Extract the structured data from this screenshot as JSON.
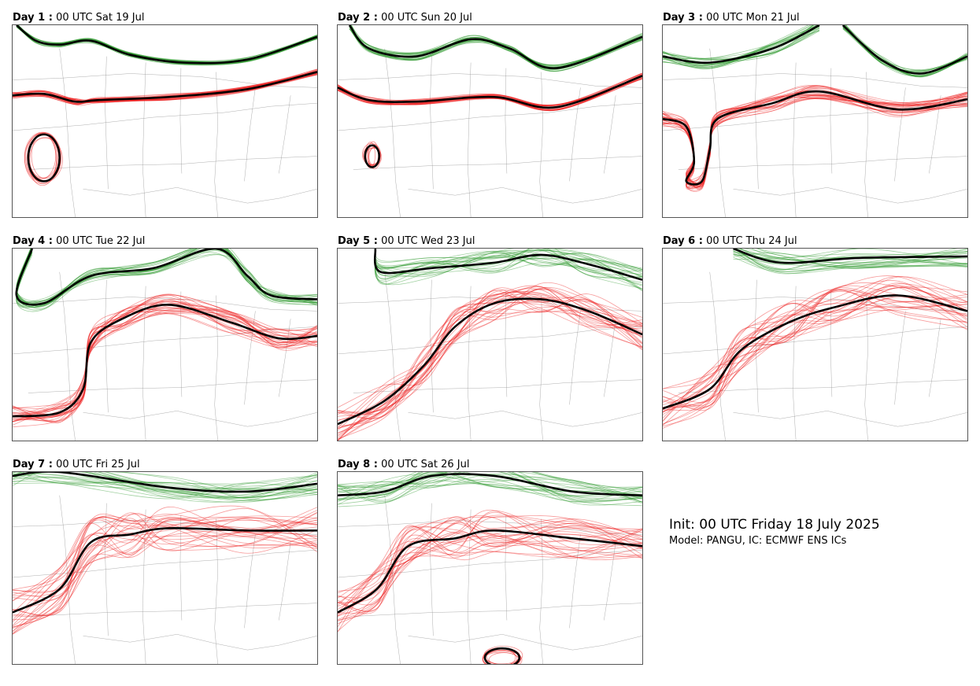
{
  "panels": [
    {
      "day": "Day 1 :",
      "label": "00 UTC Sat 19 Jul"
    },
    {
      "day": "Day 2 :",
      "label": "00 UTC Sun 20 Jul"
    },
    {
      "day": "Day 3 :",
      "label": "00 UTC Mon 21 Jul"
    },
    {
      "day": "Day 4 :",
      "label": "00 UTC Tue 22 Jul"
    },
    {
      "day": "Day 5 :",
      "label": "00 UTC Wed 23 Jul"
    },
    {
      "day": "Day 6 :",
      "label": "00 UTC Thu 24 Jul"
    },
    {
      "day": "Day 7 :",
      "label": "00 UTC Fri 25 Jul"
    },
    {
      "day": "Day 8 :",
      "label": "00 UTC Sat 26 Jul"
    }
  ],
  "info": {
    "title": "Init: 00 UTC Friday 18 July 2025",
    "model": "Model: PANGU, IC: ECMWF ENS ICs"
  },
  "colors": {
    "green_contour": "#2e9a2e",
    "red_contour": "#ee2020",
    "mean_contour": "#000000",
    "borders": "#8a8a8a"
  }
}
